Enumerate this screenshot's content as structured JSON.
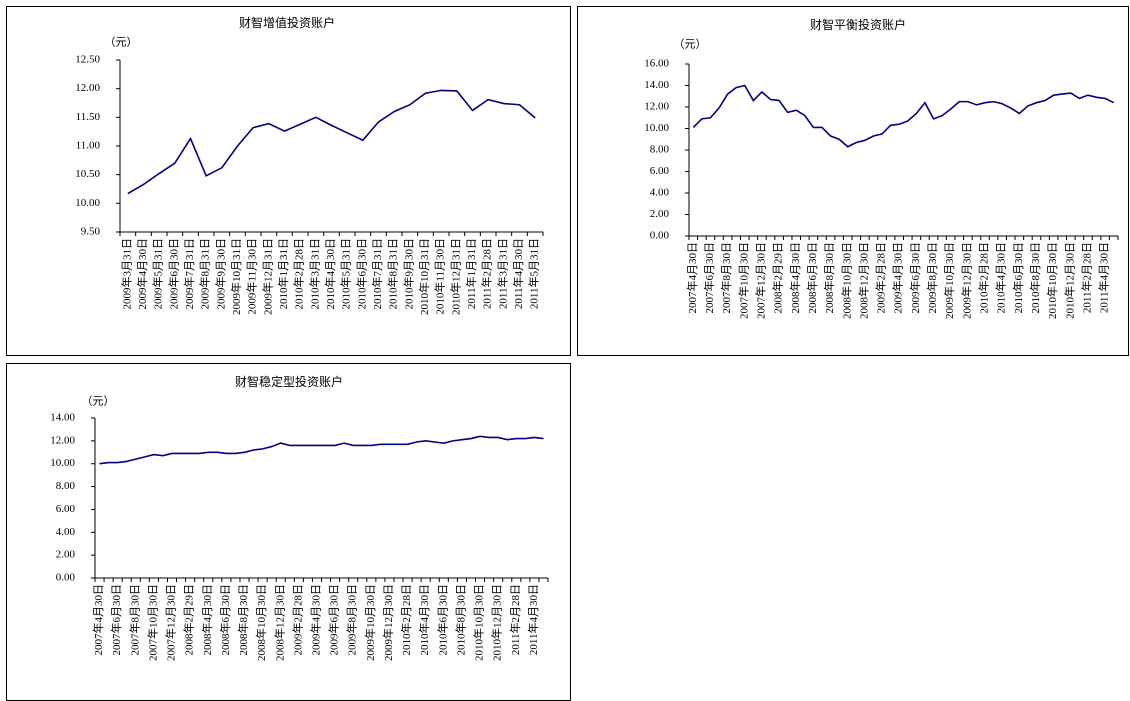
{
  "chart_data": [
    {
      "type": "line",
      "title": "财智增值投资账户",
      "ylabel": "（元）",
      "color": "#000080",
      "categories": [
        "2009年3月31日",
        "2009年4月30日",
        "2009年5月31日",
        "2009年6月30日",
        "2009年7月31日",
        "2009年8月31日",
        "2009年9月30日",
        "2009年10月31日",
        "2009年11月30日",
        "2009年12月31日",
        "2010年1月31日",
        "2010年2月28日",
        "2010年3月31日",
        "2010年4月30日",
        "2010年5月31日",
        "2010年6月30日",
        "2010年7月31日",
        "2010年8月31日",
        "2010年9月30日",
        "2010年10月31日",
        "2010年11月30日",
        "2010年12月31日",
        "2011年1月31日",
        "2011年2月28日",
        "2011年3月31日",
        "2011年4月30日",
        "2011年5月31日"
      ],
      "values": [
        10.17,
        10.33,
        10.52,
        10.7,
        11.13,
        10.48,
        10.62,
        11.0,
        11.32,
        11.39,
        11.26,
        11.38,
        11.5,
        11.36,
        11.23,
        11.1,
        11.42,
        11.6,
        11.72,
        11.92,
        11.97,
        11.96,
        11.62,
        11.81,
        11.74,
        11.72,
        11.49
      ],
      "ylim": [
        9.5,
        12.5
      ],
      "yticks": [
        {
          "value": 9.5,
          "label": "9.50"
        },
        {
          "value": 10,
          "label": "10.00"
        },
        {
          "value": 10.5,
          "label": "10.50"
        },
        {
          "value": 11,
          "label": "11.00"
        },
        {
          "value": 11.5,
          "label": "11.50"
        },
        {
          "value": 12,
          "label": "12.00"
        },
        {
          "value": 12.5,
          "label": "12.50"
        }
      ]
    },
    {
      "type": "line",
      "title": "财智平衡投资账户",
      "ylabel": "（元）",
      "color": "#000080",
      "categories": [
        "2007年4月30日",
        null,
        "2007年6月30日",
        null,
        "2007年8月30日",
        null,
        "2007年10月30日",
        null,
        "2007年12月30日",
        null,
        "2008年2月29日",
        null,
        "2008年4月30日",
        null,
        "2008年6月30日",
        null,
        "2008年8月30日",
        null,
        "2008年10月30日",
        null,
        "2008年12月30日",
        null,
        "2009年2月28日",
        null,
        "2009年4月30日",
        null,
        "2009年6月30日",
        null,
        "2009年8月30日",
        null,
        "2009年10月30日",
        null,
        "2009年12月30日",
        null,
        "2010年2月28日",
        null,
        "2010年4月30日",
        null,
        "2010年6月30日",
        null,
        "2010年8月30日",
        null,
        "2010年10月30日",
        null,
        "2010年12月30日",
        null,
        "2011年2月28日",
        null,
        "2011年4月30日",
        null
      ],
      "values": [
        10.1,
        10.9,
        11.0,
        11.9,
        13.2,
        13.8,
        14.0,
        12.6,
        13.4,
        12.7,
        12.6,
        11.5,
        11.7,
        11.2,
        10.1,
        10.1,
        9.3,
        9.0,
        8.3,
        8.7,
        8.9,
        9.3,
        9.5,
        10.3,
        10.4,
        10.7,
        11.4,
        12.4,
        10.9,
        11.2,
        11.8,
        12.5,
        12.5,
        12.2,
        12.4,
        12.5,
        12.3,
        11.9,
        11.4,
        12.1,
        12.4,
        12.6,
        13.1,
        13.2,
        13.3,
        12.8,
        13.1,
        12.9,
        12.8,
        12.4
      ],
      "ylim": [
        0,
        16
      ],
      "yticks": [
        {
          "value": 0,
          "label": "0.00"
        },
        {
          "value": 2,
          "label": "2.00"
        },
        {
          "value": 4,
          "label": "4.00"
        },
        {
          "value": 6,
          "label": "6.00"
        },
        {
          "value": 8,
          "label": "8.00"
        },
        {
          "value": 10,
          "label": "10.00"
        },
        {
          "value": 12,
          "label": "12.00"
        },
        {
          "value": 14,
          "label": "14.00"
        },
        {
          "value": 16,
          "label": "16.00"
        }
      ]
    },
    {
      "type": "line",
      "title": "财智稳定型投资账户",
      "ylabel": "（元）",
      "color": "#000080",
      "categories": [
        "2007年4月30日",
        null,
        "2007年6月30日",
        null,
        "2007年8月30日",
        null,
        "2007年10月30日",
        null,
        "2007年12月30日",
        null,
        "2008年2月29日",
        null,
        "2008年4月30日",
        null,
        "2008年6月30日",
        null,
        "2008年8月30日",
        null,
        "2008年10月30日",
        null,
        "2008年12月30日",
        null,
        "2009年2月28日",
        null,
        "2009年4月30日",
        null,
        "2009年6月30日",
        null,
        "2009年8月30日",
        null,
        "2009年10月30日",
        null,
        "2009年12月30日",
        null,
        "2010年2月28日",
        null,
        "2010年4月30日",
        null,
        "2010年6月30日",
        null,
        "2010年8月30日",
        null,
        "2010年10月30日",
        null,
        "2010年12月30日",
        null,
        "2011年2月28日",
        null,
        "2011年4月30日",
        null
      ],
      "values": [
        10.0,
        10.1,
        10.1,
        10.2,
        10.4,
        10.6,
        10.8,
        10.7,
        10.9,
        10.9,
        10.9,
        10.9,
        11.0,
        11.0,
        10.9,
        10.9,
        11.0,
        11.2,
        11.3,
        11.5,
        11.8,
        11.6,
        11.6,
        11.6,
        11.6,
        11.6,
        11.6,
        11.8,
        11.6,
        11.6,
        11.6,
        11.7,
        11.7,
        11.7,
        11.7,
        11.9,
        12.0,
        11.9,
        11.8,
        12.0,
        12.1,
        12.2,
        12.4,
        12.3,
        12.3,
        12.1,
        12.2,
        12.2,
        12.3,
        12.2
      ],
      "ylim": [
        0,
        14
      ],
      "yticks": [
        {
          "value": 0,
          "label": "0.00"
        },
        {
          "value": 2,
          "label": "2.00"
        },
        {
          "value": 4,
          "label": "4.00"
        },
        {
          "value": 6,
          "label": "6.00"
        },
        {
          "value": 8,
          "label": "8.00"
        },
        {
          "value": 10,
          "label": "10.00"
        },
        {
          "value": 12,
          "label": "12.00"
        },
        {
          "value": 14,
          "label": "14.00"
        }
      ]
    }
  ]
}
